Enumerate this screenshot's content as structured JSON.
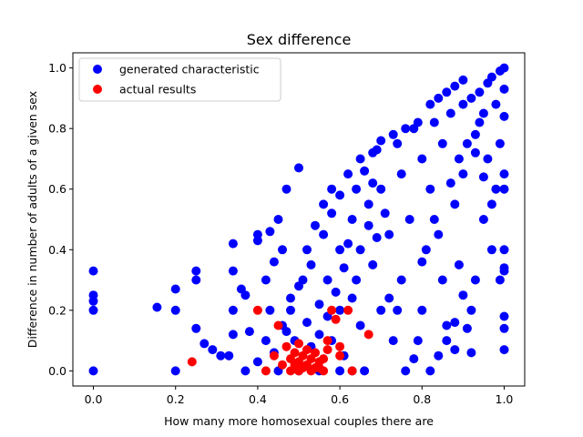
{
  "chart_data": {
    "type": "scatter",
    "title": "Sex difference",
    "xlabel": "How many more homosexual couples there are",
    "ylabel": "Difference in number of adults of a given sex",
    "xlim": [
      -0.05,
      1.05
    ],
    "ylim": [
      -0.05,
      1.05
    ],
    "xticks": [
      "0.0",
      "0.2",
      "0.4",
      "0.6",
      "0.8",
      "1.0"
    ],
    "yticks": [
      "0.0",
      "0.2",
      "0.4",
      "0.6",
      "0.8",
      "1.0"
    ],
    "grid": false,
    "legend_position": "upper-left",
    "series": [
      {
        "name": "generated characteristic",
        "color": "#0000ff",
        "points": [
          [
            0.0,
            0.0
          ],
          [
            0.0,
            0.2
          ],
          [
            0.0,
            0.23
          ],
          [
            0.0,
            0.25
          ],
          [
            0.0,
            0.33
          ],
          [
            0.155,
            0.21
          ],
          [
            0.2,
            0.0
          ],
          [
            0.2,
            0.2
          ],
          [
            0.2,
            0.27
          ],
          [
            0.25,
            0.14
          ],
          [
            0.25,
            0.3
          ],
          [
            0.25,
            0.33
          ],
          [
            0.27,
            0.09
          ],
          [
            0.29,
            0.07
          ],
          [
            0.31,
            0.05
          ],
          [
            0.33,
            0.05
          ],
          [
            0.34,
            0.12
          ],
          [
            0.34,
            0.2
          ],
          [
            0.34,
            0.33
          ],
          [
            0.34,
            0.42
          ],
          [
            0.37,
            0.0
          ],
          [
            0.37,
            0.25
          ],
          [
            0.38,
            0.13
          ],
          [
            0.4,
            0.45
          ],
          [
            0.4,
            0.43
          ],
          [
            0.43,
            0.2
          ],
          [
            0.43,
            0.46
          ],
          [
            0.45,
            0.5
          ],
          [
            0.47,
            0.6
          ],
          [
            0.5,
            0.67
          ],
          [
            0.36,
            0.27
          ],
          [
            0.42,
            0.3
          ],
          [
            0.44,
            0.36
          ],
          [
            0.46,
            0.4
          ],
          [
            0.47,
            0.13
          ],
          [
            0.48,
            0.2
          ],
          [
            0.49,
            0.1
          ],
          [
            0.51,
            0.3
          ],
          [
            0.52,
            0.16
          ],
          [
            0.53,
            0.35
          ],
          [
            0.55,
            0.22
          ],
          [
            0.56,
            0.45
          ],
          [
            0.57,
            0.3
          ],
          [
            0.58,
            0.1
          ],
          [
            0.58,
            0.6
          ],
          [
            0.6,
            0.4
          ],
          [
            0.6,
            0.2
          ],
          [
            0.61,
            0.05
          ],
          [
            0.62,
            0.65
          ],
          [
            0.63,
            0.5
          ],
          [
            0.64,
            0.3
          ],
          [
            0.65,
            0.15
          ],
          [
            0.65,
            0.7
          ],
          [
            0.66,
            0.0
          ],
          [
            0.67,
            0.55
          ],
          [
            0.68,
            0.35
          ],
          [
            0.69,
            0.73
          ],
          [
            0.7,
            0.2
          ],
          [
            0.7,
            0.6
          ],
          [
            0.72,
            0.45
          ],
          [
            0.73,
            0.1
          ],
          [
            0.74,
            0.75
          ],
          [
            0.75,
            0.65
          ],
          [
            0.75,
            0.3
          ],
          [
            0.77,
            0.5
          ],
          [
            0.78,
            0.8
          ],
          [
            0.78,
            0.04
          ],
          [
            0.8,
            0.7
          ],
          [
            0.8,
            0.2
          ],
          [
            0.81,
            0.4
          ],
          [
            0.82,
            0.6
          ],
          [
            0.83,
            0.82
          ],
          [
            0.84,
            0.45
          ],
          [
            0.85,
            0.3
          ],
          [
            0.85,
            0.75
          ],
          [
            0.86,
            0.15
          ],
          [
            0.87,
            0.85
          ],
          [
            0.88,
            0.55
          ],
          [
            0.88,
            0.07
          ],
          [
            0.89,
            0.35
          ],
          [
            0.9,
            0.88
          ],
          [
            0.9,
            0.65
          ],
          [
            0.91,
            0.14
          ],
          [
            0.92,
            0.06
          ],
          [
            0.92,
            0.9
          ],
          [
            0.93,
            0.78
          ],
          [
            0.93,
            0.3
          ],
          [
            0.94,
            0.92
          ],
          [
            0.95,
            0.5
          ],
          [
            0.95,
            0.85
          ],
          [
            0.96,
            0.95
          ],
          [
            0.96,
            0.7
          ],
          [
            0.97,
            0.97
          ],
          [
            0.97,
            0.4
          ],
          [
            0.98,
            0.6
          ],
          [
            0.98,
            0.88
          ],
          [
            0.99,
            0.99
          ],
          [
            0.99,
            0.75
          ],
          [
            1.0,
            1.0
          ],
          [
            1.0,
            0.93
          ],
          [
            1.0,
            0.84
          ],
          [
            1.0,
            0.65
          ],
          [
            1.0,
            0.6
          ],
          [
            1.0,
            0.4
          ],
          [
            1.0,
            0.34
          ],
          [
            1.0,
            0.33
          ],
          [
            1.0,
            0.18
          ],
          [
            1.0,
            0.14
          ],
          [
            1.0,
            0.07
          ],
          [
            0.99,
            0.3
          ],
          [
            0.97,
            0.55
          ],
          [
            0.95,
            0.64
          ],
          [
            0.93,
            0.72
          ],
          [
            0.91,
            0.75
          ],
          [
            0.82,
            0.88
          ],
          [
            0.84,
            0.9
          ],
          [
            0.86,
            0.92
          ],
          [
            0.88,
            0.94
          ],
          [
            0.9,
            0.96
          ],
          [
            0.79,
            0.82
          ],
          [
            0.76,
            0.8
          ],
          [
            0.73,
            0.78
          ],
          [
            0.7,
            0.76
          ],
          [
            0.68,
            0.72
          ],
          [
            0.72,
            0.24
          ],
          [
            0.74,
            0.2
          ],
          [
            0.76,
            0.0
          ],
          [
            0.79,
            0.1
          ],
          [
            0.82,
            0.0
          ],
          [
            0.84,
            0.05
          ],
          [
            0.86,
            0.1
          ],
          [
            0.88,
            0.16
          ],
          [
            0.9,
            0.25
          ],
          [
            0.92,
            0.2
          ],
          [
            0.8,
            0.36
          ],
          [
            0.83,
            0.5
          ],
          [
            0.87,
            0.62
          ],
          [
            0.89,
            0.7
          ],
          [
            0.94,
            0.82
          ],
          [
            0.6,
            0.0
          ],
          [
            0.63,
            0.0
          ],
          [
            0.55,
            0.0
          ],
          [
            0.5,
            0.0
          ],
          [
            0.45,
            0.0
          ],
          [
            0.4,
            0.03
          ],
          [
            0.42,
            0.1
          ],
          [
            0.44,
            0.06
          ],
          [
            0.46,
            0.15
          ],
          [
            0.48,
            0.24
          ],
          [
            0.5,
            0.28
          ],
          [
            0.52,
            0.4
          ],
          [
            0.54,
            0.48
          ],
          [
            0.56,
            0.55
          ],
          [
            0.58,
            0.52
          ],
          [
            0.6,
            0.58
          ],
          [
            0.62,
            0.42
          ],
          [
            0.64,
            0.6
          ],
          [
            0.66,
            0.66
          ],
          [
            0.68,
            0.62
          ],
          [
            0.53,
            0.08
          ],
          [
            0.55,
            0.12
          ],
          [
            0.57,
            0.18
          ],
          [
            0.59,
            0.26
          ],
          [
            0.61,
            0.34
          ],
          [
            0.63,
            0.24
          ],
          [
            0.65,
            0.4
          ],
          [
            0.67,
            0.48
          ],
          [
            0.69,
            0.44
          ],
          [
            0.71,
            0.52
          ]
        ]
      },
      {
        "name": "actual results",
        "color": "#ff0000",
        "points": [
          [
            0.24,
            0.03
          ],
          [
            0.4,
            0.2
          ],
          [
            0.42,
            0.0
          ],
          [
            0.44,
            0.05
          ],
          [
            0.45,
            0.15
          ],
          [
            0.46,
            0.02
          ],
          [
            0.47,
            0.08
          ],
          [
            0.48,
            0.0
          ],
          [
            0.48,
            0.04
          ],
          [
            0.49,
            0.06
          ],
          [
            0.5,
            0.0
          ],
          [
            0.5,
            0.03
          ],
          [
            0.5,
            0.09
          ],
          [
            0.51,
            0.01
          ],
          [
            0.51,
            0.05
          ],
          [
            0.52,
            0.02
          ],
          [
            0.52,
            0.07
          ],
          [
            0.53,
            0.0
          ],
          [
            0.53,
            0.04
          ],
          [
            0.54,
            0.06
          ],
          [
            0.55,
            0.01
          ],
          [
            0.55,
            0.03
          ],
          [
            0.56,
            0.0
          ],
          [
            0.57,
            0.07
          ],
          [
            0.57,
            0.1
          ],
          [
            0.58,
            0.2
          ],
          [
            0.59,
            0.17
          ],
          [
            0.6,
            0.08
          ],
          [
            0.6,
            0.05
          ],
          [
            0.62,
            0.2
          ],
          [
            0.63,
            0.0
          ],
          [
            0.67,
            0.12
          ],
          [
            0.49,
            0.02
          ],
          [
            0.54,
            0.01
          ],
          [
            0.56,
            0.04
          ]
        ]
      }
    ]
  }
}
